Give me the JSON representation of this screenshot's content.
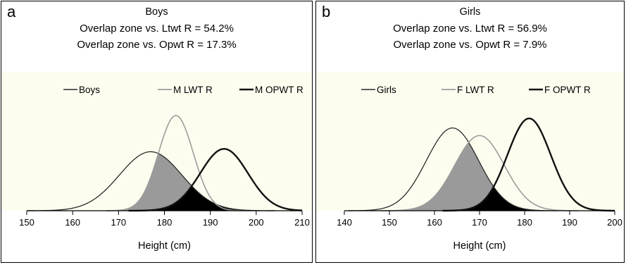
{
  "colors": {
    "plot_bg": "#FDFDEF",
    "shade_main": "#9A9A9A",
    "shade_dark": "#000000",
    "line_total": "#2A2A2A",
    "line_lwt": "#9C9C9C",
    "line_opwt": "#111111"
  },
  "chart_data": [
    {
      "type": "line",
      "panel_label": "a",
      "title": "Boys",
      "subtitle": [
        "Overlap zone vs. Ltwt R = 54.2%",
        "Overlap zone vs. Opwt R = 17.3%"
      ],
      "xlabel": "Height (cm)",
      "ylabel": "",
      "xlim": [
        150,
        210
      ],
      "xticks": [
        150,
        160,
        170,
        180,
        190,
        200,
        210
      ],
      "legend_position": "top-center",
      "grid": false,
      "series": [
        {
          "name": "Boys",
          "mean": 177,
          "sd": 6.8,
          "peak": 0.62
        },
        {
          "name": "M LWT R",
          "mean": 182.5,
          "sd": 3.8,
          "peak": 1.0
        },
        {
          "name": "M OPWT R",
          "mean": 193,
          "sd": 5.2,
          "peak": 0.65
        }
      ]
    },
    {
      "type": "line",
      "panel_label": "b",
      "title": "Girls",
      "subtitle": [
        "Overlap zone vs. Ltwt R = 56.9%",
        "Overlap zone vs. Opwt R = 7.9%"
      ],
      "xlabel": "Height (cm)",
      "ylabel": "",
      "xlim": [
        140,
        200
      ],
      "xticks": [
        140,
        150,
        160,
        170,
        180,
        190,
        200
      ],
      "legend_position": "top-center",
      "grid": false,
      "series": [
        {
          "name": "Girls",
          "mean": 164,
          "sd": 5.8,
          "peak": 0.87
        },
        {
          "name": "F LWT R",
          "mean": 170,
          "sd": 5.5,
          "peak": 0.79
        },
        {
          "name": "F OPWT R",
          "mean": 181,
          "sd": 4.8,
          "peak": 0.97
        }
      ]
    }
  ]
}
